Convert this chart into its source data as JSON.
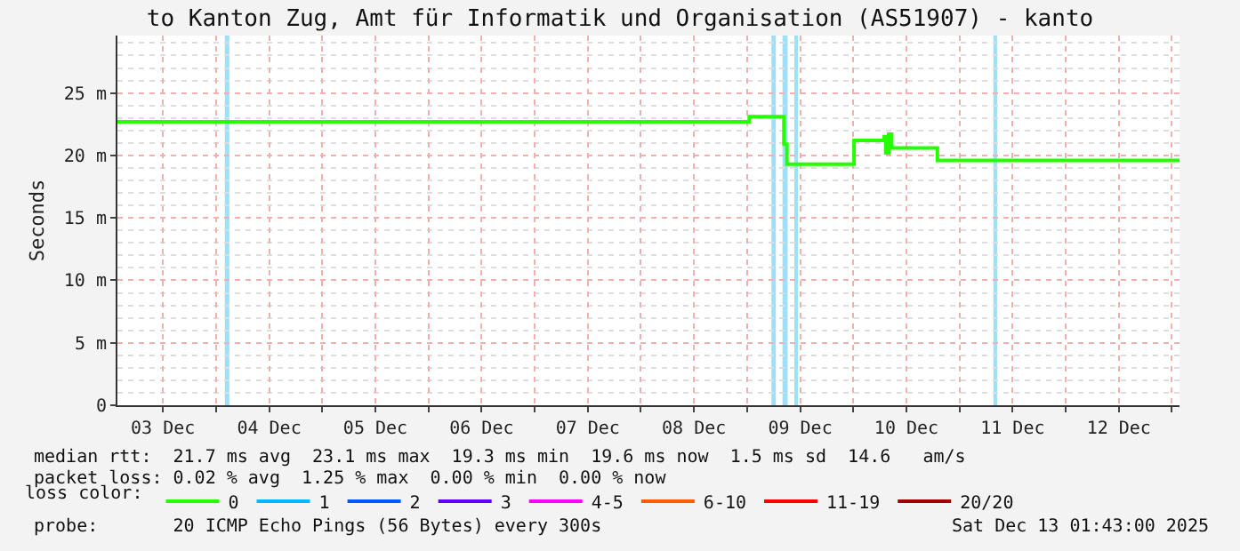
{
  "chart_data": {
    "type": "step",
    "title": "to Kanton Zug, Amt für Informatik und Organisation (AS51907) - kanto",
    "ylabel": "Seconds",
    "x": [
      "2025-12-03T01:43",
      "2025-12-09T00:30",
      "2025-12-09T08:20",
      "2025-12-09T09:00",
      "2025-12-10T00:10",
      "2025-12-10T07:00",
      "2025-12-10T07:20",
      "2025-12-10T08:00",
      "2025-12-10T08:40",
      "2025-12-10T19:00",
      "2025-12-13T01:43"
    ],
    "series": [
      {
        "name": "0",
        "color": "#26ff00",
        "values": [
          22.7,
          23.1,
          20.9,
          19.3,
          21.2,
          21.5,
          20.2,
          21.7,
          20.6,
          19.6,
          19.6
        ]
      },
      {
        "name": "1",
        "color": "#00b8ff",
        "values": [
          null,
          null,
          null,
          null,
          null,
          null,
          null,
          null,
          null,
          null,
          null
        ]
      },
      {
        "name": "2",
        "color": "#0059ff",
        "values": [
          null,
          null,
          null,
          null,
          null,
          null,
          null,
          null,
          null,
          null,
          null
        ]
      },
      {
        "name": "3",
        "color": "#5e00ff",
        "values": [
          null,
          null,
          null,
          null,
          null,
          null,
          null,
          null,
          null,
          null,
          null
        ]
      },
      {
        "name": "4-5",
        "color": "#ff00ff",
        "values": [
          null,
          null,
          null,
          null,
          null,
          null,
          null,
          null,
          null,
          null,
          null
        ]
      },
      {
        "name": "6-10",
        "color": "#ff5e00",
        "values": [
          null,
          null,
          null,
          null,
          null,
          null,
          null,
          null,
          null,
          null,
          null
        ]
      },
      {
        "name": "11-19",
        "color": "#ff0000",
        "values": [
          null,
          null,
          null,
          null,
          null,
          null,
          null,
          null,
          null,
          null,
          null
        ]
      },
      {
        "name": "20/20",
        "color": "#a10000",
        "values": [
          null,
          null,
          null,
          null,
          null,
          null,
          null,
          null,
          null,
          null,
          null
        ]
      }
    ],
    "legend_title": "loss color:",
    "legend": "bottom",
    "xlim": [
      "2025-12-03T01:43",
      "2025-12-13T01:43"
    ],
    "xticks": [
      {
        "value": "2025-12-03T12:00",
        "label": "03 Dec"
      },
      {
        "value": "2025-12-04T00:00",
        "label": null
      },
      {
        "value": "2025-12-04T12:00",
        "label": "04 Dec"
      },
      {
        "value": "2025-12-05T00:00",
        "label": null
      },
      {
        "value": "2025-12-05T12:00",
        "label": "05 Dec"
      },
      {
        "value": "2025-12-06T00:00",
        "label": null
      },
      {
        "value": "2025-12-06T12:00",
        "label": "06 Dec"
      },
      {
        "value": "2025-12-07T00:00",
        "label": null
      },
      {
        "value": "2025-12-07T12:00",
        "label": "07 Dec"
      },
      {
        "value": "2025-12-08T00:00",
        "label": null
      },
      {
        "value": "2025-12-08T12:00",
        "label": "08 Dec"
      },
      {
        "value": "2025-12-09T00:00",
        "label": null
      },
      {
        "value": "2025-12-09T12:00",
        "label": "09 Dec"
      },
      {
        "value": "2025-12-10T00:00",
        "label": null
      },
      {
        "value": "2025-12-10T12:00",
        "label": "10 Dec"
      },
      {
        "value": "2025-12-11T00:00",
        "label": null
      },
      {
        "value": "2025-12-11T12:00",
        "label": "11 Dec"
      },
      {
        "value": "2025-12-12T00:00",
        "label": null
      },
      {
        "value": "2025-12-12T12:00",
        "label": "12 Dec"
      },
      {
        "value": "2025-12-13T00:00",
        "label": null
      }
    ],
    "ylim": [
      0,
      29.6
    ],
    "yticks": [
      0,
      {
        "value": 5,
        "label": "5 m"
      },
      {
        "value": 10,
        "label": "10 m"
      },
      {
        "value": 15,
        "label": "15 m"
      },
      {
        "value": 20,
        "label": "20 m"
      },
      {
        "value": 25,
        "label": "25 m"
      }
    ],
    "grid": true,
    "marker": "none",
    "line_style": "solid",
    "bands": [
      {
        "axis": "x",
        "from": "2025-12-04T02:00",
        "to": "2025-12-04T03:00",
        "color": "#9fe0f8"
      },
      {
        "axis": "x",
        "from": "2025-12-09T05:30",
        "to": "2025-12-09T06:30",
        "color": "#9fe0f8"
      },
      {
        "axis": "x",
        "from": "2025-12-09T08:00",
        "to": "2025-12-09T09:10",
        "color": "#9fe0f8"
      },
      {
        "axis": "x",
        "from": "2025-12-09T10:40",
        "to": "2025-12-09T11:30",
        "color": "#9fe0f8"
      },
      {
        "axis": "x",
        "from": "2025-12-11T07:40",
        "to": "2025-12-11T08:30",
        "color": "#9fe0f8"
      }
    ],
    "annotations": [
      "median rtt:  21.7 ms avg  23.1 ms max  19.3 ms min  19.6 ms now  1.5 ms sd  14.6   am/s",
      "packet loss: 0.02 % avg  1.25 % max  0.00 % min  0.00 % now",
      "probe:       20 ICMP Echo Pings (56 Bytes) every 300s",
      "Sat Dec 13 01:43:00 2025"
    ]
  }
}
